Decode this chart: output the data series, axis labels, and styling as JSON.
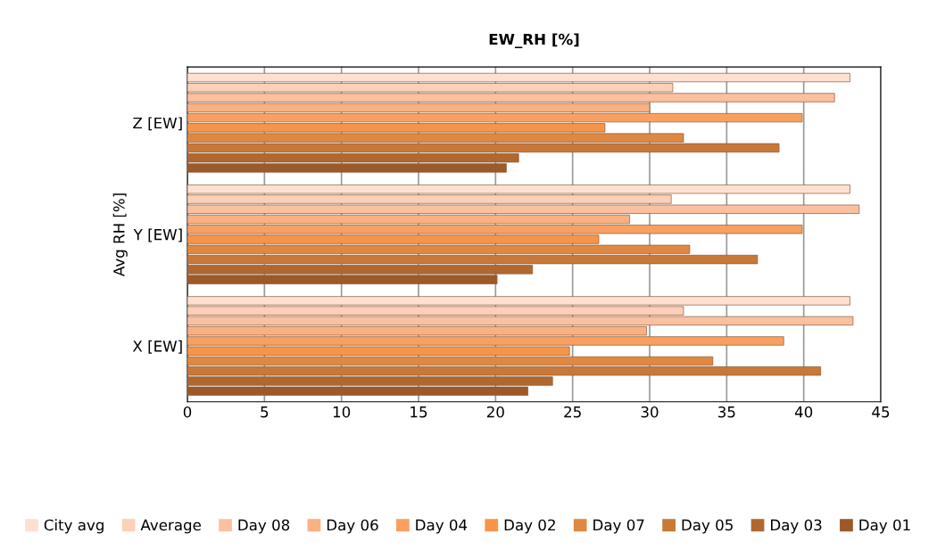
{
  "chart_data": {
    "type": "bar",
    "orientation": "horizontal",
    "title": "EW_RH [%]",
    "ylabel": "Avg RH [%]",
    "categories": [
      "Z [EW]",
      "Y [EW]",
      "X [EW]"
    ],
    "series": [
      {
        "name": "City avg",
        "color": "#fde0d0",
        "values": [
          43.0,
          43.0,
          43.0
        ]
      },
      {
        "name": "Average",
        "color": "#fcd0b8",
        "values": [
          31.5,
          31.4,
          32.2
        ]
      },
      {
        "name": "Day 08",
        "color": "#fbc0a0",
        "values": [
          42.0,
          43.6,
          43.2
        ]
      },
      {
        "name": "Day 06",
        "color": "#fab080",
        "values": [
          30.0,
          28.7,
          29.8
        ]
      },
      {
        "name": "Day 04",
        "color": "#f9a060",
        "values": [
          39.9,
          39.9,
          38.7
        ]
      },
      {
        "name": "Day 02",
        "color": "#f79448",
        "values": [
          27.1,
          26.7,
          24.8
        ]
      },
      {
        "name": "Day 07",
        "color": "#e08840",
        "values": [
          32.2,
          32.6,
          34.1
        ]
      },
      {
        "name": "Day 05",
        "color": "#c87838",
        "values": [
          38.4,
          37.0,
          41.1
        ]
      },
      {
        "name": "Day 03",
        "color": "#b06830",
        "values": [
          21.5,
          22.4,
          23.7
        ]
      },
      {
        "name": "Day 01",
        "color": "#9c5a28",
        "values": [
          20.7,
          20.1,
          22.1
        ]
      }
    ],
    "xlim": [
      0,
      45
    ],
    "xticks": [
      0,
      5,
      10,
      15,
      20,
      25,
      30,
      35,
      40,
      45
    ],
    "grid": "x",
    "legend": "bottom"
  }
}
